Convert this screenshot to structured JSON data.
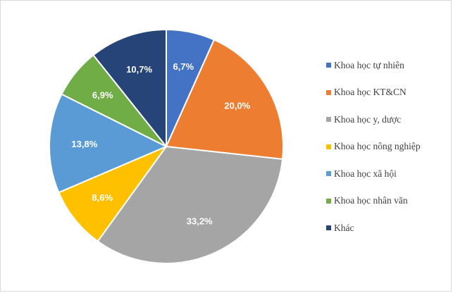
{
  "chart_data": {
    "type": "pie",
    "title": "",
    "start_angle_deg": 0,
    "direction": "clockwise",
    "legend_position": "right",
    "label_format": "percent-comma",
    "slices": [
      {
        "label": "Khoa học tự nhiên",
        "value": 6.7,
        "display": "6,7%",
        "color": "#4472c4"
      },
      {
        "label": "Khoa học KT&CN",
        "value": 20.0,
        "display": "20,0%",
        "color": "#ed7d31"
      },
      {
        "label": "Khoa học y, dược",
        "value": 33.2,
        "display": "33,2%",
        "color": "#a5a5a5"
      },
      {
        "label": "Khoa học nông nghiệp",
        "value": 8.6,
        "display": "8,6%",
        "color": "#ffc000"
      },
      {
        "label": "Khoa học xã hội",
        "value": 13.8,
        "display": "13,8%",
        "color": "#5b9bd5"
      },
      {
        "label": "Khoa học nhân văn",
        "value": 6.9,
        "display": "6,9%",
        "color": "#70ad47"
      },
      {
        "label": "Khác",
        "value": 10.7,
        "display": "10,7%",
        "color": "#264478"
      }
    ]
  }
}
